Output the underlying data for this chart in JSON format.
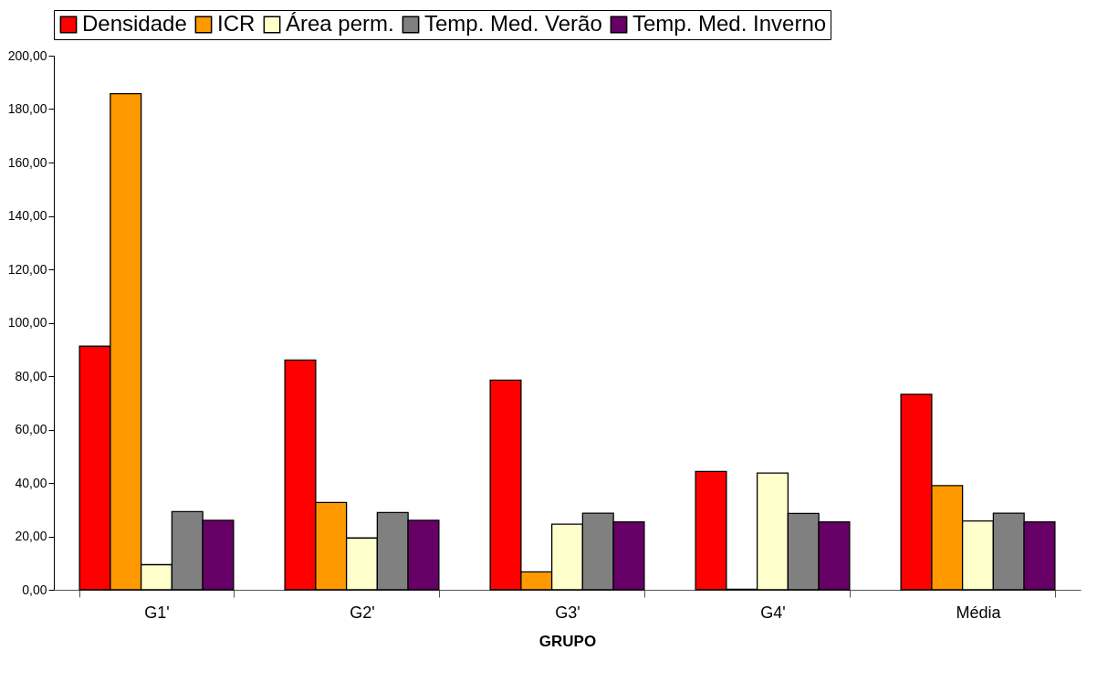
{
  "chart_data": {
    "type": "bar",
    "xlabel": "GRUPO",
    "categories": [
      "G1'",
      "G2'",
      "G3'",
      "G4'",
      "Média"
    ],
    "series": [
      {
        "name": "Densidade",
        "color": "#ff0000",
        "values": [
          91.2,
          86.0,
          78.5,
          44.3,
          73.2
        ]
      },
      {
        "name": "ICR",
        "color": "#ff9900",
        "values": [
          185.8,
          32.7,
          6.7,
          0.2,
          39.0
        ]
      },
      {
        "name": "Área perm.",
        "color": "#ffffcc",
        "values": [
          9.4,
          19.4,
          24.6,
          43.7,
          25.8
        ]
      },
      {
        "name": "Temp. Med. Verão",
        "color": "#808080",
        "values": [
          29.3,
          28.9,
          28.7,
          28.6,
          28.7
        ]
      },
      {
        "name": "Temp. Med. Inverno",
        "color": "#660066",
        "values": [
          26.0,
          26.0,
          25.4,
          25.4,
          25.4
        ]
      }
    ],
    "ylim": [
      0,
      200
    ],
    "yticks": [
      {
        "value": 0,
        "label": "0,00"
      },
      {
        "value": 20,
        "label": "20,00"
      },
      {
        "value": 40,
        "label": "40,00"
      },
      {
        "value": 60,
        "label": "60,00"
      },
      {
        "value": 80,
        "label": "80,00"
      },
      {
        "value": 100,
        "label": "100,00"
      },
      {
        "value": 120,
        "label": "120,00"
      },
      {
        "value": 140,
        "label": "140,00"
      },
      {
        "value": 160,
        "label": "160,00"
      },
      {
        "value": 180,
        "label": "180,00"
      },
      {
        "value": 200,
        "label": "200,00"
      }
    ],
    "grid": false,
    "legend": "top"
  }
}
